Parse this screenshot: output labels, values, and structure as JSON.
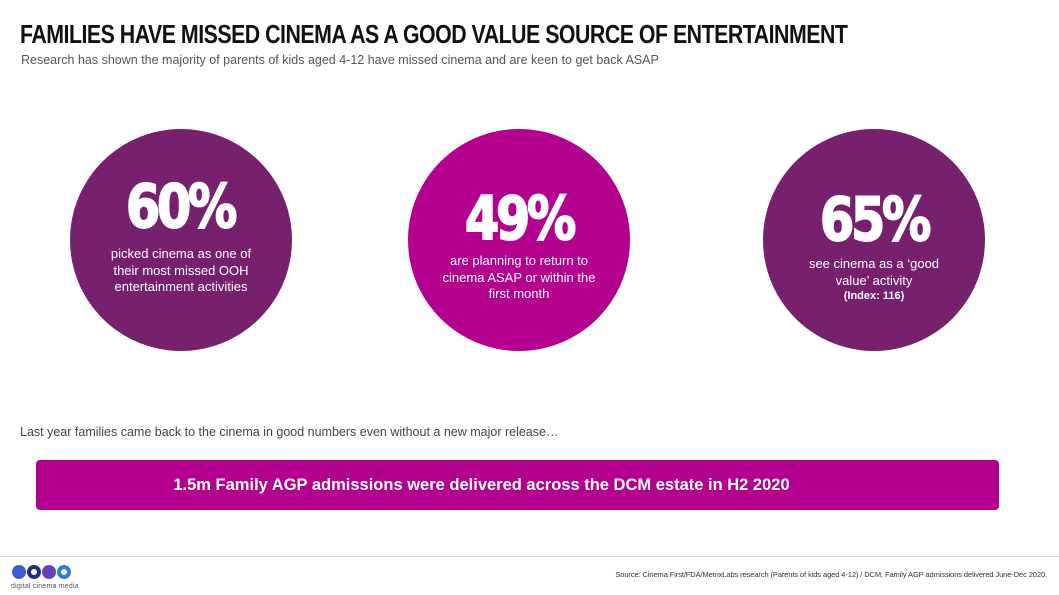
{
  "header": {
    "title": "FAMILIES HAVE MISSED CINEMA AS A GOOD VALUE SOURCE OF ENTERTAINMENT",
    "subtitle": "Research has shown the majority of parents of kids aged 4-12 have missed cinema and are keen to get back ASAP"
  },
  "stats": [
    {
      "value": "60%",
      "text": "picked cinema as one of their most missed OOH entertainment activities",
      "color": "#76206e"
    },
    {
      "value": "49%",
      "text": "are planning to return to cinema ASAP or within the first month",
      "color": "#b3008f"
    },
    {
      "value": "65%",
      "text": "see cinema as a ‘good value’ activity",
      "index": "(Index: 116)",
      "color": "#76206e"
    }
  ],
  "note": "Last year families came back to the cinema in good numbers even without a new major release…",
  "banner": {
    "text": "1.5m Family AGP admissions were delivered across the DCM estate in H2 2020",
    "color": "#b3008f"
  },
  "footer": {
    "logo_text": "digital cinema media",
    "source": "Source: Cinema First/FDA/MetrixLabs research (Parents of kids aged 4-12) / DCM, Family AGP admissions delivered June-Dec 2020."
  }
}
